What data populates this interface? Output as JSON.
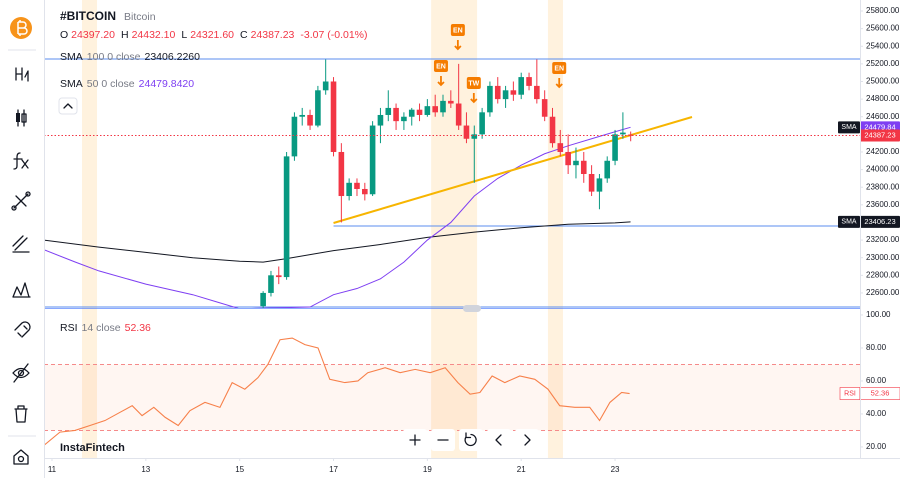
{
  "header": {
    "symbol": "#BITCOIN",
    "name": "Bitcoin",
    "ohlc": [
      {
        "key": "O",
        "value": "24397.20"
      },
      {
        "key": "H",
        "value": "24432.10"
      },
      {
        "key": "L",
        "value": "24321.60"
      },
      {
        "key": "C",
        "value": "24387.23"
      }
    ],
    "change": "-3.07 (-0.01%)",
    "indicators": [
      {
        "name": "SMA",
        "params": "100 0 close",
        "value": "23406.2260"
      },
      {
        "name": "SMA",
        "params": "50 0 close",
        "value": "24479.8420"
      }
    ],
    "rsi": {
      "name": "RSI",
      "params": "14 close",
      "value": "52.36"
    }
  },
  "watermark": "InstaFintech",
  "chart_data": [
    {
      "type": "candlestick",
      "up_color": "#089981",
      "down_color": "#f23645",
      "x": [
        15.5,
        15.667,
        15.833,
        16,
        16.167,
        16.333,
        16.5,
        16.667,
        16.833,
        17,
        17.167,
        17.333,
        17.5,
        17.667,
        17.833,
        18,
        18.167,
        18.333,
        18.5,
        18.667,
        18.833,
        19,
        19.167,
        19.333,
        19.5,
        19.667,
        19.833,
        20,
        20.167,
        20.333,
        20.5,
        20.667,
        20.833,
        21,
        21.167,
        21.333,
        21.5,
        21.667,
        21.833,
        22,
        22.167,
        22.333,
        22.5,
        22.667,
        22.833,
        23,
        23.167,
        23.333
      ],
      "open": [
        22450,
        22600,
        22800,
        22780,
        24150,
        24600,
        24620,
        24500,
        24900,
        25000,
        24200,
        23700,
        23850,
        23780,
        23720,
        24500,
        24620,
        24700,
        24550,
        24600,
        24680,
        24620,
        24720,
        24650,
        24780,
        24750,
        24500,
        24350,
        24400,
        24650,
        24950,
        24800,
        24900,
        24850,
        25050,
        24950,
        24800,
        24600,
        24300,
        24200,
        24050,
        24100,
        23950,
        23750,
        23900,
        24100,
        24400,
        24397.2
      ],
      "high": [
        22620,
        22850,
        22900,
        24200,
        24650,
        24700,
        24680,
        24950,
        25250,
        25050,
        24300,
        23900,
        23900,
        23850,
        24550,
        24700,
        24900,
        24750,
        24650,
        24700,
        24750,
        24800,
        24850,
        24850,
        24900,
        25200,
        24650,
        24500,
        24700,
        25000,
        25050,
        24950,
        25000,
        25100,
        25100,
        25250,
        24900,
        24700,
        24450,
        24400,
        24250,
        24200,
        24050,
        23950,
        24150,
        24450,
        24650,
        24432.1
      ],
      "low": [
        22380,
        22560,
        22700,
        22750,
        24100,
        24500,
        24450,
        24480,
        24850,
        24150,
        23400,
        23650,
        23700,
        23650,
        23700,
        24300,
        24550,
        24450,
        24450,
        24500,
        24550,
        24600,
        24600,
        24600,
        24700,
        24450,
        24300,
        23850,
        24350,
        24600,
        24750,
        24700,
        24780,
        24800,
        24900,
        24750,
        24550,
        24250,
        24150,
        23950,
        23900,
        23850,
        23700,
        23550,
        23850,
        24050,
        24350,
        24321.6
      ],
      "close": [
        22600,
        22800,
        22780,
        24150,
        24600,
        24620,
        24500,
        24900,
        25000,
        24200,
        23700,
        23850,
        23780,
        23720,
        24500,
        24620,
        24700,
        24550,
        24600,
        24680,
        24620,
        24720,
        24650,
        24780,
        24750,
        24500,
        24350,
        24400,
        24650,
        24950,
        24800,
        24900,
        24850,
        25050,
        24950,
        24800,
        24600,
        24300,
        24200,
        24050,
        24100,
        23950,
        23750,
        23900,
        24100,
        24400,
        24420,
        24387.23
      ],
      "sma": [
        {
          "color": "#131722",
          "x": [
            10.83,
            12,
            13,
            14,
            15,
            15.5,
            16,
            17,
            18,
            19,
            20,
            21,
            22,
            23,
            23.33
          ],
          "values": [
            23200,
            23120,
            23060,
            23000,
            22960,
            22950,
            22990,
            23080,
            23150,
            23230,
            23290,
            23340,
            23380,
            23395,
            23406.23
          ]
        },
        {
          "color": "#7e3ff2",
          "x": [
            10.83,
            11.5,
            12,
            13,
            14,
            14.5,
            15,
            16.5,
            17,
            17.5,
            18,
            18.5,
            19,
            19.5,
            20,
            20.5,
            21,
            21.5,
            22,
            22.5,
            23,
            23.33
          ],
          "values": [
            23090,
            22950,
            22850,
            22700,
            22580,
            22500,
            22420,
            22440,
            22580,
            22650,
            22760,
            22950,
            23200,
            23400,
            23700,
            23900,
            24050,
            24180,
            24270,
            24350,
            24430,
            24479.84
          ]
        }
      ],
      "trend_line": {
        "color": "#f7b500",
        "x": [
          17.0,
          24.64
        ],
        "values": [
          23394,
          24597
        ]
      },
      "levels": [
        {
          "value": 25255,
          "from": 10.83
        },
        {
          "value": 23360,
          "from": 17.0
        },
        {
          "value": 22440,
          "from": 10.83
        }
      ],
      "bands": [
        [
          11.64,
          11.96
        ],
        [
          19.08,
          20.06
        ],
        [
          21.57,
          21.89
        ]
      ],
      "signals": [
        {
          "label": "EN",
          "x": 19.65,
          "price": 25584
        },
        {
          "label": "EN",
          "x": 19.29,
          "price": 25176
        },
        {
          "label": "TW",
          "x": 19.99,
          "price": 24983
        },
        {
          "label": "EN",
          "x": 21.81,
          "price": 25153
        }
      ],
      "badges": [
        {
          "label": "SMA",
          "value": 24479.84,
          "color": "#7e3ff2"
        },
        {
          "value": 24387.23,
          "color": "#f23645"
        },
        {
          "label": "SMA",
          "value": 23406.23,
          "color": "#131722"
        }
      ],
      "xlim": [
        10.83,
        28.22
      ],
      "xticks": [
        11,
        13,
        15,
        17,
        19,
        21,
        23
      ],
      "ylim": [
        22429,
        25925
      ],
      "yticks": [
        {
          "value": 22600,
          "label": "22600.00"
        },
        {
          "value": 22800,
          "label": "22800.00"
        },
        {
          "value": 23000,
          "label": "23000.00"
        },
        {
          "value": 23200,
          "label": "23200.00"
        },
        {
          "value": 23400,
          "label": "23400.00"
        },
        {
          "value": 23600,
          "label": "23600.00"
        },
        {
          "value": 23800,
          "label": "23800.00"
        },
        {
          "value": 24000,
          "label": "24000.00"
        },
        {
          "value": 24200,
          "label": "24200.00"
        },
        {
          "value": 24400,
          "label": "24400.00"
        },
        {
          "value": 24600,
          "label": "24600.00"
        },
        {
          "value": 24800,
          "label": "24800.00"
        },
        {
          "value": 25000,
          "label": "25000.00"
        },
        {
          "value": 25200,
          "label": "25200.00"
        },
        {
          "value": 25400,
          "label": "25400.00"
        },
        {
          "value": 25600,
          "label": "25600.00"
        },
        {
          "value": 25800,
          "label": "25800.00"
        }
      ]
    },
    {
      "type": "line",
      "name": "RSI",
      "color": "#f7804a",
      "x": [
        10.83,
        11.17,
        11.49,
        11.81,
        12.13,
        12.45,
        12.71,
        12.92,
        13.17,
        13.41,
        13.69,
        13.94,
        14.26,
        14.58,
        14.84,
        15.11,
        15.39,
        15.6,
        15.86,
        16.12,
        16.39,
        16.67,
        16.92,
        17.24,
        17.52,
        17.73,
        18.1,
        18.42,
        18.74,
        19.06,
        19.38,
        19.65,
        19.91,
        20.12,
        20.38,
        20.65,
        20.97,
        21.29,
        21.57,
        21.82,
        22.14,
        22.46,
        22.67,
        22.89,
        23.14,
        23.31
      ],
      "values": [
        21,
        29,
        30,
        33,
        36,
        41,
        45,
        39,
        44,
        38,
        33,
        42,
        47,
        44,
        59,
        55,
        62,
        70,
        85,
        86,
        82,
        80,
        61,
        59,
        60,
        65,
        68,
        65,
        67,
        65,
        68,
        59,
        52,
        53,
        63,
        59,
        63,
        61,
        55,
        45,
        44,
        44,
        36,
        47,
        53,
        52.36
      ],
      "levels": [
        70,
        30
      ],
      "badge": {
        "label": "RSI",
        "value": 52.36
      },
      "xlim": [
        10.83,
        28.22
      ],
      "ylim": [
        13.3,
        103
      ],
      "yticks": [
        {
          "value": 20,
          "label": "20.00"
        },
        {
          "value": 40,
          "label": "40.00"
        },
        {
          "value": 60,
          "label": "60.00"
        },
        {
          "value": 80,
          "label": "80.00"
        },
        {
          "value": 100,
          "label": "100.00"
        }
      ]
    }
  ]
}
